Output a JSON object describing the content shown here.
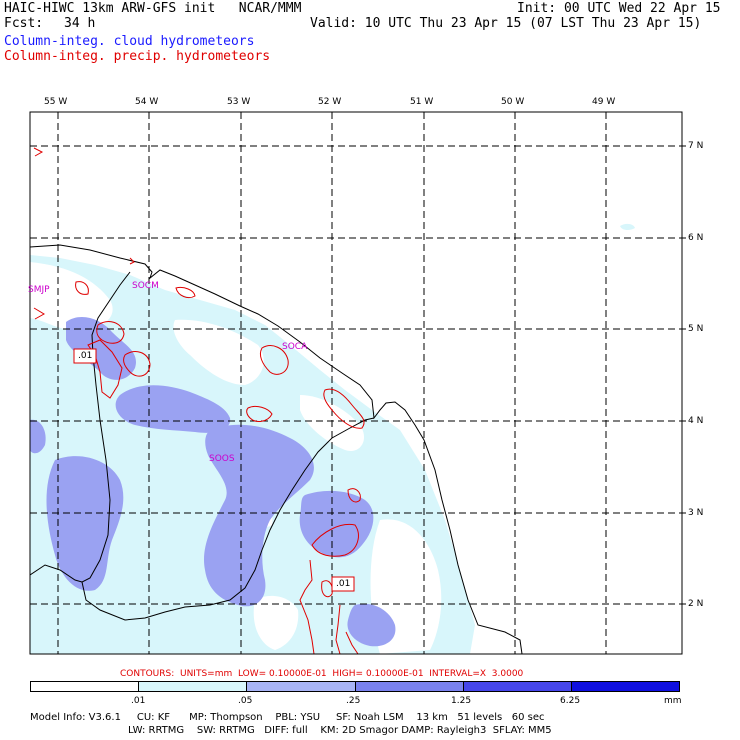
{
  "header": {
    "title": "HAIC-HIWC 13km ARW-GFS init   NCAR/MMM",
    "init": "Init: 00 UTC Wed 22 Apr 15",
    "fcst_label": "Fcst:",
    "fcst_value": "34 h",
    "valid": "Valid: 10 UTC Thu 23 Apr 15 (07 LST Thu 23 Apr 15)",
    "field1": "Column-integ. cloud hydrometeors",
    "field2": "Column-integ. precip. hydrometeors"
  },
  "map": {
    "lon_labels": [
      "55 W",
      "54 W",
      "53 W",
      "52 W",
      "51 W",
      "50 W",
      "49 W"
    ],
    "lat_labels": [
      "7 N",
      "6 N",
      "5 N",
      "4 N",
      "3 N",
      "2 N"
    ],
    "stations": [
      "SMJP",
      "SOCM",
      "SOCA",
      "SOOS"
    ],
    "contour_labels": [
      ".01",
      ".01"
    ]
  },
  "footer": {
    "contours": "CONTOURS:  UNITS=mm  LOW= 0.10000E-01  HIGH= 0.10000E-01  INTERVAL=X  3.0000",
    "colorbar_labels": [
      ".01",
      ".05",
      ".25",
      "1.25",
      "6.25"
    ],
    "colorbar_unit": "mm",
    "colorbar_colors": [
      "#ffffff",
      "#d8f6fb",
      "#a8b4f5",
      "#7a82ee",
      "#4646ea",
      "#1010e0"
    ],
    "model_info_1": "Model Info: V3.6.1     CU: KF      MP: Thompson    PBL: YSU     SF: Noah LSM    13 km   51 levels   60 sec",
    "model_info_2": "LW: RRTMG    SW: RRTMG   DIFF: full    KM: 2D Smagor DAMP: Rayleigh3  SFLAY: MM5"
  }
}
